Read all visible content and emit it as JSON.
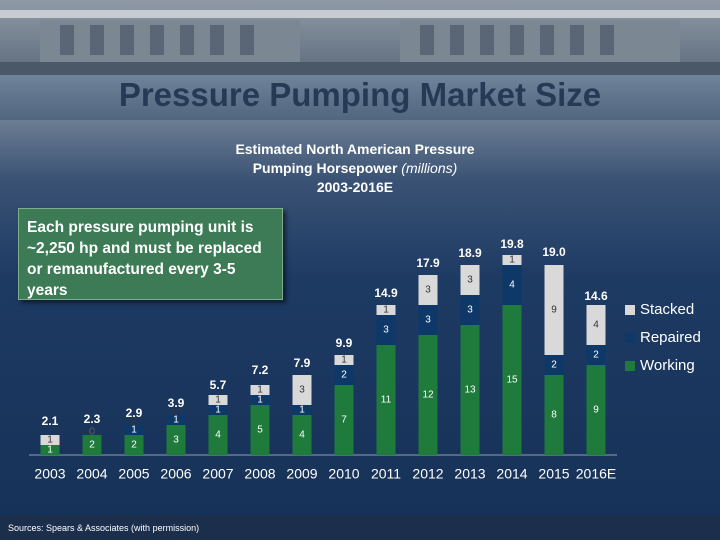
{
  "slide_title": "Pressure Pumping Market Size",
  "callout": "Each pressure pumping unit is ~2,250 hp and must be replaced or remanufactured every 3-5 years",
  "source": "Sources:  Spears & Associates (with permission)",
  "chart_data": {
    "type": "stacked_bar",
    "title": "Estimated North American Pressure Pumping Horsepower",
    "title_unit": "(millions)",
    "subtitle": "2003-2016E",
    "categories": [
      "2003",
      "2004",
      "2005",
      "2006",
      "2007",
      "2008",
      "2009",
      "2010",
      "2011",
      "2012",
      "2013",
      "2014",
      "2015",
      "2016E"
    ],
    "series": [
      {
        "name": "Working",
        "color": "#1e7b3c",
        "values": [
          1,
          2,
          2,
          3,
          4,
          5,
          4,
          7,
          11,
          12,
          13,
          15,
          8,
          9
        ]
      },
      {
        "name": "Repaired",
        "color": "#0d3868",
        "values": [
          0,
          0,
          1,
          1,
          1,
          1,
          1,
          2,
          3,
          3,
          3,
          4,
          2,
          2
        ]
      },
      {
        "name": "Stacked",
        "color": "#d9d9d9",
        "values": [
          1,
          0,
          0,
          0,
          1,
          1,
          3,
          1,
          1,
          3,
          3,
          1,
          9,
          4
        ]
      }
    ],
    "totals": [
      2.1,
      2.3,
      2.9,
      3.9,
      5.7,
      7.2,
      7.9,
      9.9,
      14.9,
      17.9,
      18.9,
      19.8,
      19.0,
      14.6
    ],
    "totals_labels": [
      "2.1",
      "2.3",
      "2.9",
      "3.9",
      "5.7",
      "7.2",
      "7.9",
      "9.9",
      "14.9",
      "17.9",
      "18.9",
      "19.8",
      "19.0",
      "14.6"
    ],
    "ylim": [
      0,
      20
    ],
    "legend": "right"
  }
}
